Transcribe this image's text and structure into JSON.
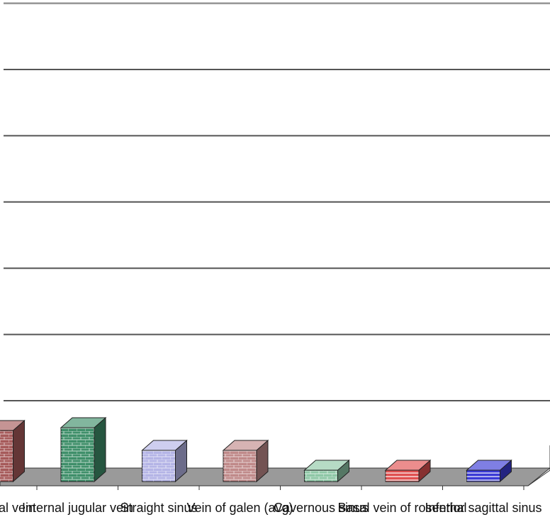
{
  "chart_data": {
    "type": "bar",
    "three_d": true,
    "categories": [
      "Vertebral vein",
      "Internal jugular vein",
      "Straight sinus",
      "Vein of galen (avg)",
      "Cavernous sinus",
      "Basal vein of rosenthal",
      "Inferior sagittal sinus"
    ],
    "values": [
      0.9,
      0.95,
      0.55,
      0.55,
      0.2,
      0.2,
      0.2
    ],
    "series_colors": [
      "#a65a5a",
      "#3f8f6a",
      "#b4b4e6",
      "#c08a8a",
      "#8ec7a6",
      "#e05050",
      "#3a3ad6"
    ],
    "ylim": [
      0,
      10
    ],
    "grid": true,
    "legend": "none",
    "xlabel": "",
    "ylabel": ""
  }
}
